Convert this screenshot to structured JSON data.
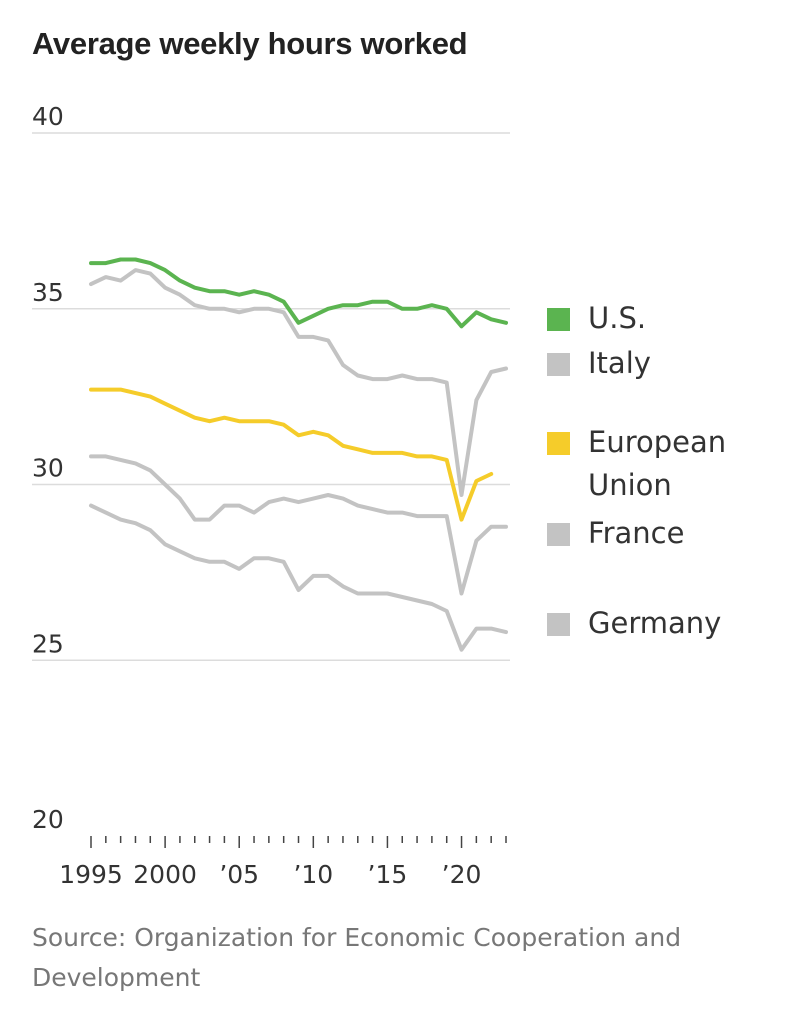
{
  "chart_data": {
    "type": "line",
    "title": "Average weekly hours worked",
    "xlabel": "",
    "ylabel": "",
    "ylim": [
      20,
      40
    ],
    "xlim": [
      1995,
      2023
    ],
    "y_ticks": [
      {
        "value": 40,
        "label": "40"
      },
      {
        "value": 35,
        "label": "35"
      },
      {
        "value": 30,
        "label": "30"
      },
      {
        "value": 25,
        "label": "25"
      },
      {
        "value": 20,
        "label": "20"
      }
    ],
    "x_ticks": [
      {
        "value": 1995,
        "label": "1995"
      },
      {
        "value": 2000,
        "label": "2000"
      },
      {
        "value": 2005,
        "label": "’05"
      },
      {
        "value": 2010,
        "label": "’10"
      },
      {
        "value": 2015,
        "label": "’15"
      },
      {
        "value": 2020,
        "label": "’20"
      }
    ],
    "grid": true,
    "legend_position": "right",
    "x": [
      1995,
      1996,
      1997,
      1998,
      1999,
      2000,
      2001,
      2002,
      2003,
      2004,
      2005,
      2006,
      2007,
      2008,
      2009,
      2010,
      2011,
      2012,
      2013,
      2014,
      2015,
      2016,
      2017,
      2018,
      2019,
      2020,
      2021,
      2022,
      2023
    ],
    "series": [
      {
        "name": "U.S.",
        "legend_label": [
          "U.S."
        ],
        "color": "#5bb450",
        "values": [
          36.3,
          36.3,
          36.4,
          36.4,
          36.3,
          36.1,
          35.8,
          35.6,
          35.5,
          35.5,
          35.4,
          35.5,
          35.4,
          35.2,
          34.6,
          34.8,
          35.0,
          35.1,
          35.1,
          35.2,
          35.2,
          35.0,
          35.0,
          35.1,
          35.0,
          34.5,
          34.9,
          34.7,
          34.6
        ]
      },
      {
        "name": "Italy",
        "legend_label": [
          "Italy"
        ],
        "color": "#c3c3c3",
        "values": [
          35.7,
          35.9,
          35.8,
          36.1,
          36.0,
          35.6,
          35.4,
          35.1,
          35.0,
          35.0,
          34.9,
          35.0,
          35.0,
          34.9,
          34.2,
          34.2,
          34.1,
          33.4,
          33.1,
          33.0,
          33.0,
          33.1,
          33.0,
          33.0,
          32.9,
          29.7,
          32.4,
          33.2,
          33.3
        ]
      },
      {
        "name": "European Union",
        "legend_label": [
          "European",
          "Union"
        ],
        "color": "#f5cc2a",
        "values": [
          32.7,
          32.7,
          32.7,
          32.6,
          32.5,
          32.3,
          32.1,
          31.9,
          31.8,
          31.9,
          31.8,
          31.8,
          31.8,
          31.7,
          31.4,
          31.5,
          31.4,
          31.1,
          31.0,
          30.9,
          30.9,
          30.9,
          30.8,
          30.8,
          30.7,
          29.0,
          30.1,
          30.3,
          null
        ]
      },
      {
        "name": "France",
        "legend_label": [
          "France"
        ],
        "color": "#c3c3c3",
        "values": [
          30.8,
          30.8,
          30.7,
          30.6,
          30.4,
          30.0,
          29.6,
          29.0,
          29.0,
          29.4,
          29.4,
          29.2,
          29.5,
          29.6,
          29.5,
          29.6,
          29.7,
          29.6,
          29.4,
          29.3,
          29.2,
          29.2,
          29.1,
          29.1,
          29.1,
          26.9,
          28.4,
          28.8,
          28.8
        ]
      },
      {
        "name": "Germany",
        "legend_label": [
          "Germany"
        ],
        "color": "#c3c3c3",
        "values": [
          29.4,
          29.2,
          29.0,
          28.9,
          28.7,
          28.3,
          28.1,
          27.9,
          27.8,
          27.8,
          27.6,
          27.9,
          27.9,
          27.8,
          27.0,
          27.4,
          27.4,
          27.1,
          26.9,
          26.9,
          26.9,
          26.8,
          26.7,
          26.6,
          26.4,
          25.3,
          25.9,
          25.9,
          25.8
        ]
      }
    ]
  },
  "source_text": "Source: Organization for Economic Cooperation and Development"
}
